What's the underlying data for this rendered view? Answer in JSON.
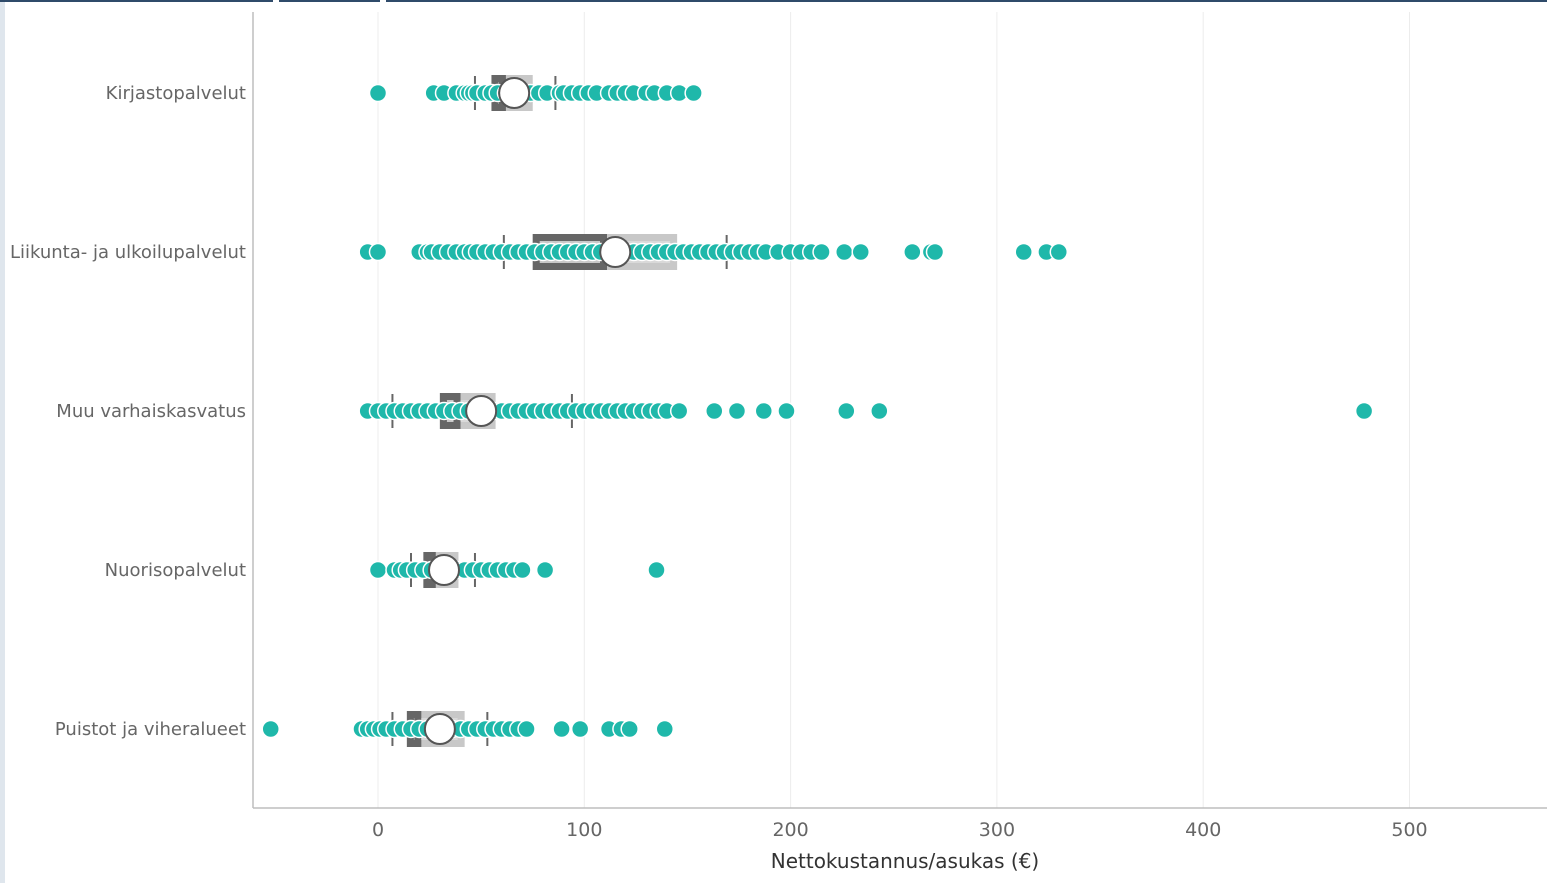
{
  "chart_data": {
    "type": "box-scatter",
    "orientation": "horizontal",
    "title": "",
    "xlabel": "Nettokustannus/asukas (€)",
    "ylabel": "",
    "xlim": [
      -60,
      565
    ],
    "xticks": [
      0,
      100,
      200,
      300,
      400,
      500
    ],
    "grid": true,
    "legend": "none",
    "colors": {
      "points": "#1fb8aa",
      "box_light": "#c8c8c8",
      "box_dark": "#666666",
      "mean_marker": "#ffffff"
    },
    "categories": [
      {
        "name": "Kirjastopalvelut",
        "whisker_low": 47,
        "q1": 55,
        "median": 62,
        "q3": 75,
        "whisker_high": 86,
        "mean": 66,
        "points": [
          0,
          27,
          32,
          38,
          42,
          44,
          46,
          48,
          52,
          55,
          58,
          62,
          66,
          70,
          74,
          78,
          82,
          88,
          90,
          94,
          98,
          102,
          106,
          112,
          116,
          120,
          124,
          130,
          134,
          140,
          146,
          153
        ]
      },
      {
        "name": "Liikunta- ja ulkoilupalvelut",
        "whisker_low": 61,
        "q1": 75,
        "median": 111,
        "q3": 145,
        "whisker_high": 169,
        "mean": 115,
        "points": [
          -5,
          0,
          20,
          24,
          26,
          30,
          34,
          38,
          42,
          45,
          48,
          52,
          56,
          60,
          64,
          68,
          72,
          76,
          80,
          84,
          88,
          92,
          96,
          100,
          104,
          108,
          112,
          116,
          120,
          124,
          128,
          132,
          136,
          140,
          144,
          148,
          152,
          156,
          160,
          164,
          168,
          172,
          176,
          180,
          184,
          188,
          194,
          200,
          205,
          210,
          215,
          226,
          234,
          259,
          268,
          270,
          313,
          324,
          330
        ]
      },
      {
        "name": "Muu varhaiskasvatus",
        "whisker_low": 7,
        "q1": 30,
        "median": 40,
        "q3": 57,
        "whisker_high": 94,
        "mean": 50,
        "points": [
          -5,
          0,
          4,
          8,
          12,
          16,
          20,
          24,
          28,
          32,
          36,
          40,
          44,
          48,
          52,
          56,
          60,
          64,
          68,
          72,
          76,
          80,
          84,
          88,
          92,
          96,
          100,
          104,
          108,
          112,
          116,
          120,
          124,
          128,
          132,
          136,
          140,
          146,
          163,
          174,
          187,
          198,
          227,
          243,
          478
        ]
      },
      {
        "name": "Nuorisopalvelut",
        "whisker_low": 16,
        "q1": 22,
        "median": 28,
        "q3": 39,
        "whisker_high": 47,
        "mean": 32,
        "points": [
          0,
          8,
          11,
          14,
          18,
          22,
          26,
          30,
          34,
          38,
          42,
          46,
          50,
          54,
          58,
          62,
          66,
          70,
          81,
          135
        ]
      },
      {
        "name": "Puistot ja viheralueet",
        "whisker_low": 7,
        "q1": 14,
        "median": 21,
        "q3": 42,
        "whisker_high": 53,
        "mean": 30,
        "points": [
          -52,
          -8,
          -5,
          -2,
          1,
          4,
          8,
          12,
          16,
          20,
          24,
          28,
          32,
          36,
          40,
          44,
          48,
          52,
          56,
          60,
          64,
          68,
          72,
          89,
          98,
          112,
          118,
          122,
          139
        ]
      }
    ]
  }
}
